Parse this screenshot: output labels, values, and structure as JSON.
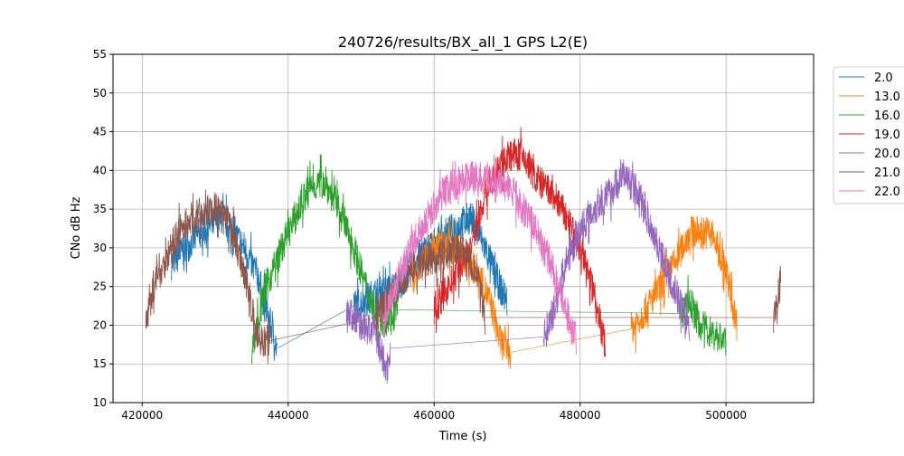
{
  "chart_data": {
    "type": "line",
    "title": "240726/results/BX_all_1 GPS L2(E)",
    "xlabel": "Time (s)",
    "ylabel": "CNo dB Hz",
    "xlim": [
      416000,
      512000
    ],
    "ylim": [
      10,
      55
    ],
    "xticks": [
      420000,
      440000,
      460000,
      480000,
      500000
    ],
    "yticks": [
      10,
      15,
      20,
      25,
      30,
      35,
      40,
      45,
      50,
      55
    ],
    "grid": true,
    "legend_placement": "outside-right-top",
    "noise_db": 2.2,
    "series": [
      {
        "name": "2.0",
        "color": "#1f77b4",
        "segments": [
          [
            [
              424000,
              28
            ],
            [
              428000,
              32
            ],
            [
              431000,
              34
            ],
            [
              434000,
              30
            ],
            [
              436000,
              26
            ],
            [
              437000,
              22
            ],
            [
              438500,
              17
            ]
          ],
          [
            [
              449000,
              22.5
            ],
            [
              452000,
              24
            ],
            [
              455000,
              25
            ],
            [
              458000,
              29
            ],
            [
              462000,
              32
            ],
            [
              465000,
              34
            ],
            [
              467000,
              30
            ],
            [
              469000,
              25
            ],
            [
              470000,
              23
            ]
          ]
        ]
      },
      {
        "name": "13.0",
        "color": "#ff7f0e",
        "segments": [
          [
            [
              457000,
              26
            ],
            [
              460000,
              30
            ],
            [
              463000,
              30
            ],
            [
              466000,
              27
            ],
            [
              468000,
              22
            ],
            [
              469000,
              18
            ],
            [
              470500,
              16.5
            ]
          ],
          [
            [
              487000,
              19.5
            ],
            [
              489000,
              22
            ],
            [
              491000,
              25
            ],
            [
              493000,
              28
            ],
            [
              495000,
              32
            ],
            [
              498000,
              32
            ],
            [
              500000,
              27
            ],
            [
              501500,
              20
            ]
          ]
        ]
      },
      {
        "name": "16.0",
        "color": "#2ca02c",
        "segments": [
          [
            [
              435000,
              17
            ],
            [
              437000,
              25
            ],
            [
              440000,
              32
            ],
            [
              443000,
              38
            ],
            [
              445000,
              38.5
            ],
            [
              447000,
              35
            ],
            [
              449000,
              30
            ],
            [
              451000,
              24
            ],
            [
              452500,
              20
            ],
            [
              455000,
              22
            ]
          ],
          [
            [
              494000,
              21.5
            ],
            [
              495000,
              23
            ],
            [
              496500,
              20
            ],
            [
              499000,
              18.5
            ],
            [
              500000,
              18
            ]
          ]
        ]
      },
      {
        "name": "19.0",
        "color": "#d62728",
        "segments": [
          [
            [
              460000,
              22
            ],
            [
              462000,
              25
            ],
            [
              465000,
              30
            ],
            [
              467000,
              37
            ],
            [
              470000,
              42
            ],
            [
              472000,
              42
            ],
            [
              474000,
              39
            ],
            [
              477000,
              36
            ],
            [
              480000,
              30
            ],
            [
              482000,
              24
            ],
            [
              483500,
              17
            ]
          ]
        ]
      },
      {
        "name": "20.0",
        "color": "#9467bd",
        "segments": [
          [
            [
              448000,
              22
            ],
            [
              450000,
              20
            ],
            [
              452000,
              19
            ],
            [
              453500,
              14
            ],
            [
              454000,
              17
            ]
          ],
          [
            [
              475000,
              18.5
            ],
            [
              476500,
              22
            ],
            [
              478000,
              28
            ],
            [
              481000,
              34
            ],
            [
              484000,
              37
            ],
            [
              486000,
              39.5
            ],
            [
              488000,
              37
            ],
            [
              490000,
              32
            ],
            [
              492000,
              27
            ],
            [
              494000,
              22
            ],
            [
              495000,
              20
            ]
          ]
        ]
      },
      {
        "name": "21.0",
        "color": "#8c564b",
        "segments": [
          [
            [
              420500,
              20
            ],
            [
              421500,
              25
            ],
            [
              423000,
              28
            ],
            [
              425000,
              32
            ],
            [
              427000,
              34
            ],
            [
              430000,
              35
            ],
            [
              432000,
              33
            ],
            [
              434000,
              27
            ],
            [
              435000,
              22
            ],
            [
              436000,
              18
            ],
            [
              437500,
              18
            ]
          ],
          [
            [
              452000,
              21
            ],
            [
              455000,
              25
            ],
            [
              458000,
              28
            ],
            [
              461000,
              29
            ],
            [
              464000,
              30
            ],
            [
              466000,
              26
            ],
            [
              467000,
              21
            ]
          ],
          [
            [
              506500,
              21
            ],
            [
              507000,
              23
            ],
            [
              507500,
              26
            ]
          ]
        ]
      },
      {
        "name": "22.0",
        "color": "#e377c2",
        "segments": [
          [
            [
              453000,
              20
            ],
            [
              455000,
              26
            ],
            [
              458000,
              32
            ],
            [
              461000,
              37
            ],
            [
              464000,
              39
            ],
            [
              467000,
              39
            ],
            [
              470000,
              38
            ],
            [
              473000,
              34
            ],
            [
              476000,
              28
            ],
            [
              478000,
              22
            ],
            [
              479500,
              18
            ]
          ]
        ]
      }
    ]
  }
}
